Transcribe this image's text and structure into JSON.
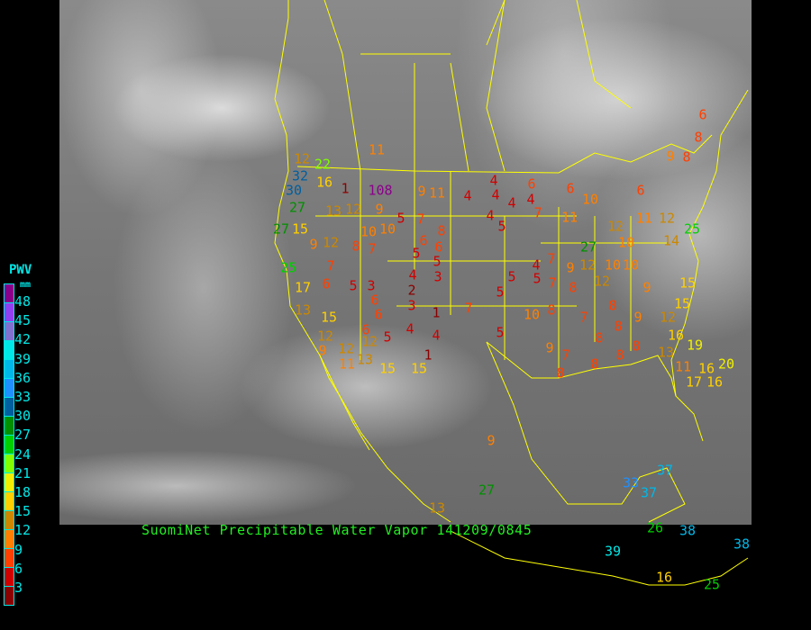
{
  "title": "SuomiNet Precipitable Water Vapor 141209/0845",
  "legend": {
    "title": "PWV",
    "unit": "mm",
    "ticks": [
      "48",
      "45",
      "42",
      "39",
      "36",
      "33",
      "30",
      "27",
      "24",
      "21",
      "18",
      "15",
      "12",
      "9",
      "6",
      "3"
    ],
    "colors": [
      "#8b008b",
      "#9040f0",
      "#8070d0",
      "#00e8e8",
      "#00b8e8",
      "#1e90ff",
      "#005f9f",
      "#009000",
      "#00d000",
      "#80ff00",
      "#f0f000",
      "#ffd000",
      "#cc8800",
      "#ff8000",
      "#ff4000",
      "#d00000",
      "#8b0000"
    ]
  },
  "border_color": "#ffff00",
  "stations": [
    "11",
    "12",
    "32",
    "22",
    "30",
    "27",
    "27",
    "15",
    "16",
    "1",
    "108",
    "9",
    "11",
    "4",
    "4",
    "4",
    "4",
    "4",
    "6",
    "6",
    "4",
    "5",
    "7",
    "11",
    "10",
    "12",
    "11",
    "6",
    "9",
    "8",
    "8",
    "6",
    "25",
    "14",
    "15",
    "15",
    "12",
    "16",
    "19",
    "13",
    "11",
    "16",
    "20",
    "17",
    "16",
    "25",
    "17",
    "13",
    "15",
    "12",
    "9",
    "12",
    "12",
    "5",
    "4",
    "4",
    "1",
    "1",
    "3",
    "2",
    "4",
    "3",
    "5",
    "5",
    "6",
    "6",
    "8",
    "7",
    "5",
    "10",
    "10",
    "12",
    "9",
    "13",
    "9",
    "12",
    "8",
    "7",
    "7",
    "6",
    "5",
    "3",
    "6",
    "6",
    "6",
    "11",
    "13",
    "15",
    "15",
    "7",
    "5",
    "5",
    "5",
    "4",
    "5",
    "7",
    "7",
    "9",
    "8",
    "10",
    "8",
    "7",
    "8",
    "8",
    "9",
    "9",
    "8",
    "9",
    "7",
    "8",
    "8",
    "8",
    "8",
    "9",
    "27",
    "13",
    "37",
    "37",
    "33",
    "26",
    "38",
    "38",
    "39",
    "16",
    "25",
    "27",
    "12",
    "10",
    "10",
    "12",
    "10",
    "12",
    "14"
  ]
}
